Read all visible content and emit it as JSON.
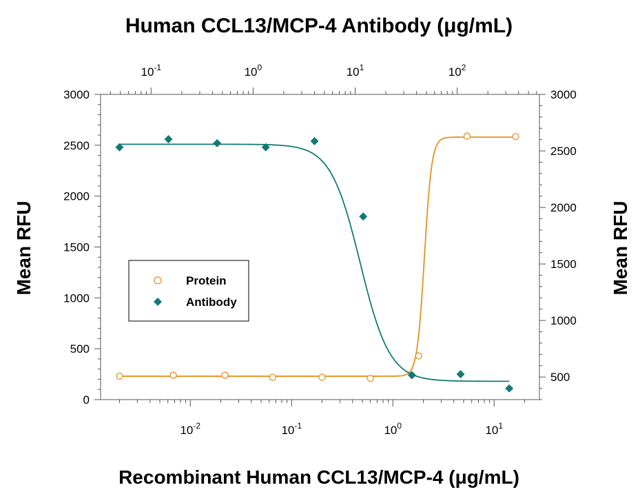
{
  "chart_data": {
    "type": "scatter",
    "title": "Human CCL13/MCP-4 Antibody (μg/mL)",
    "xlabel": "Recombinant Human CCL13/MCP-4 (μg/mL)",
    "ylabel": "Mean RFU",
    "y2label": "Mean RFU",
    "x_scale": "log",
    "xlim": [
      0.0013,
      28
    ],
    "x_ticks": [
      {
        "value": 0.01,
        "label": "10",
        "exp": "-2"
      },
      {
        "value": 0.1,
        "label": "10",
        "exp": "-1"
      },
      {
        "value": 1,
        "label": "10",
        "exp": "0"
      },
      {
        "value": 10,
        "label": "10",
        "exp": "1"
      }
    ],
    "x2_scale": "log",
    "x2lim": [
      0.032,
      640
    ],
    "x2_ticks": [
      {
        "value": 0.1,
        "label": "10",
        "exp": "-1"
      },
      {
        "value": 1,
        "label": "10",
        "exp": "0"
      },
      {
        "value": 10,
        "label": "10",
        "exp": "1"
      },
      {
        "value": 100,
        "label": "10",
        "exp": "2"
      }
    ],
    "ylim": [
      0,
      3000
    ],
    "y_ticks": [
      "0",
      "500",
      "1000",
      "1500",
      "2000",
      "2500",
      "3000"
    ],
    "y2lim": [
      300,
      3000
    ],
    "y2_ticks": [
      "500",
      "1000",
      "1500",
      "2000",
      "2500",
      "3000"
    ],
    "legend": {
      "position": "left-middle"
    },
    "series": [
      {
        "name": "Protein",
        "axis": "bottom-left",
        "marker": "circle-open",
        "color": "#e8901e",
        "x": [
          0.002,
          0.0068,
          0.022,
          0.065,
          0.2,
          0.6,
          1.8,
          5.4,
          16.3
        ],
        "y": [
          230,
          240,
          240,
          220,
          220,
          210,
          430,
          2590,
          2585
        ],
        "fit": {
          "bottom": 230,
          "top": 2580,
          "ec50": 2.05,
          "hill": 12
        }
      },
      {
        "name": "Antibody",
        "axis": "top-left",
        "marker": "diamond-filled",
        "color": "#127a75",
        "x": [
          0.049,
          0.148,
          0.444,
          1.33,
          4.0,
          12.0,
          36.0,
          108,
          324
        ],
        "y": [
          2480,
          2560,
          2520,
          2480,
          2540,
          1800,
          240,
          250,
          110
        ],
        "fit": {
          "bottom": 180,
          "top": 2510,
          "ec50": 11.2,
          "hill": 3
        }
      }
    ]
  }
}
